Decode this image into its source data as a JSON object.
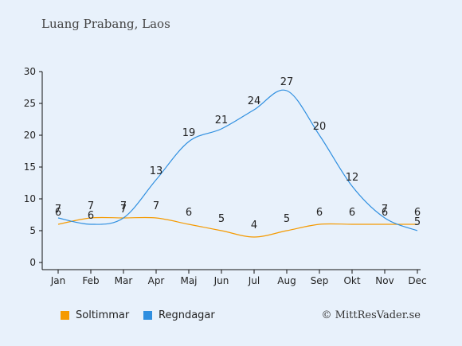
{
  "location": "Luang Prabang, Laos",
  "copyright": "© MittResVader.se",
  "chart_data": {
    "type": "line",
    "categories": [
      "Jan",
      "Feb",
      "Mar",
      "Apr",
      "Maj",
      "Jun",
      "Jul",
      "Aug",
      "Sep",
      "Okt",
      "Nov",
      "Dec"
    ],
    "ylim": [
      0,
      30
    ],
    "yticks": [
      0,
      5,
      10,
      15,
      20,
      25,
      30
    ],
    "grid": false,
    "legend_position": "bottom",
    "series": [
      {
        "name": "Soltimmar",
        "color": "#f59a00",
        "values": [
          6,
          7,
          7,
          7,
          6,
          5,
          4,
          5,
          6,
          6,
          6,
          6
        ]
      },
      {
        "name": "Regndagar",
        "color": "#2f8fe0",
        "values": [
          7,
          6,
          7,
          13,
          19,
          21,
          24,
          27,
          20,
          12,
          7,
          5
        ]
      }
    ]
  }
}
